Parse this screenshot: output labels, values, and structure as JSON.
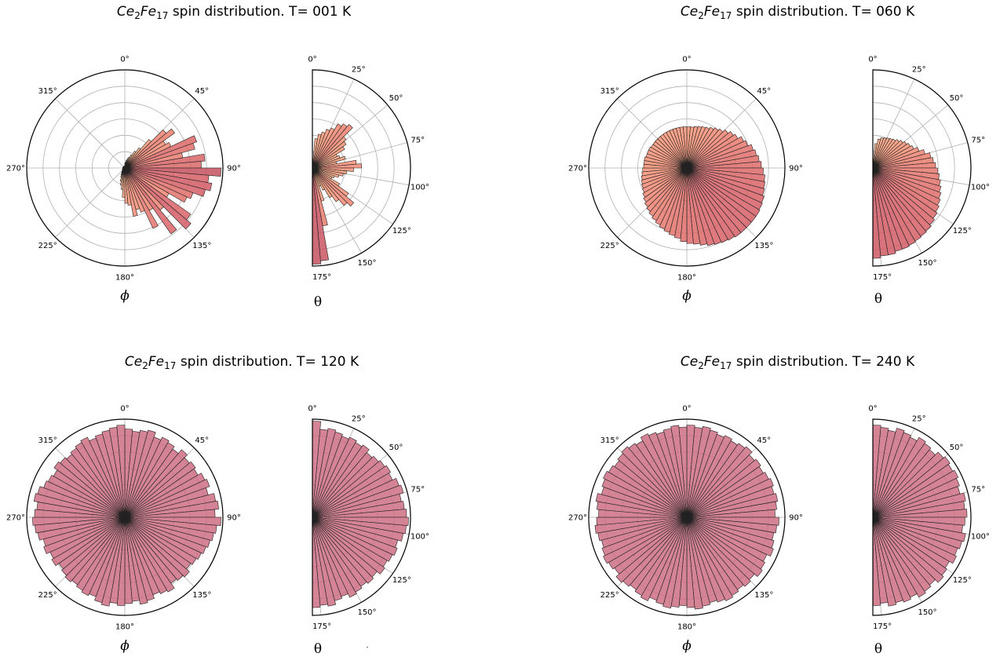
{
  "chart_data": [
    {
      "type": "polar-histogram",
      "title_prefix": "Ce",
      "title_sub1": "2",
      "title_mid": "Fe",
      "title_sub2": "17",
      "title_suffix": " spin distribution. T= 001 K",
      "temperature": "001 K",
      "phi": {
        "axis_label": "ϕ",
        "tick_labels": [
          "0°",
          "45°",
          "90°",
          "135°",
          "180°",
          "225°",
          "270°",
          "315°"
        ],
        "bin_centers_deg": [
          2.5,
          7.5,
          12.5,
          17.5,
          22.5,
          27.5,
          32.5,
          37.5,
          42.5,
          47.5,
          52.5,
          57.5,
          62.5,
          67.5,
          72.5,
          77.5,
          82.5,
          87.5,
          92.5,
          97.5,
          102.5,
          107.5,
          112.5,
          117.5,
          122.5,
          127.5,
          132.5,
          137.5,
          142.5,
          147.5,
          152.5,
          157.5,
          162.5,
          167.5,
          172.5,
          177.5,
          182.5,
          187.5,
          192.5,
          197.5,
          202.5,
          207.5,
          212.5,
          217.5,
          222.5,
          227.5,
          232.5,
          237.5,
          242.5,
          247.5,
          252.5,
          257.5,
          262.5,
          267.5,
          272.5,
          277.5,
          282.5,
          287.5,
          292.5,
          297.5,
          302.5,
          307.5,
          312.5,
          317.5,
          322.5,
          327.5,
          332.5,
          337.5,
          342.5,
          347.5,
          352.5,
          357.5
        ],
        "values": [
          0.05,
          0.06,
          0.08,
          0.1,
          0.12,
          0.15,
          0.2,
          0.25,
          0.38,
          0.55,
          0.62,
          0.48,
          0.52,
          0.78,
          0.74,
          0.6,
          0.82,
          0.78,
          0.98,
          0.86,
          0.9,
          0.85,
          0.74,
          0.7,
          0.52,
          0.82,
          0.88,
          0.56,
          0.82,
          0.5,
          0.68,
          0.48,
          0.44,
          0.5,
          0.38,
          0.36,
          0.3,
          0.22,
          0.18,
          0.14,
          0.1,
          0.08,
          0.06,
          0.05,
          0.04,
          0.03,
          0.03,
          0.03,
          0.03,
          0.02,
          0.02,
          0.02,
          0.02,
          0.02,
          0.02,
          0.02,
          0.02,
          0.02,
          0.02,
          0.02,
          0.02,
          0.02,
          0.02,
          0.02,
          0.02,
          0.02,
          0.02,
          0.02,
          0.02,
          0.02,
          0.02,
          0.02
        ]
      },
      "theta": {
        "axis_label": "θ",
        "tick_labels": [
          "0°",
          "25°",
          "50°",
          "75°",
          "100°",
          "125°",
          "150°",
          "175°"
        ],
        "bin_centers_deg": [
          2.5,
          7.5,
          12.5,
          17.5,
          22.5,
          27.5,
          32.5,
          37.5,
          42.5,
          47.5,
          52.5,
          57.5,
          62.5,
          67.5,
          72.5,
          77.5,
          82.5,
          87.5,
          92.5,
          97.5,
          102.5,
          107.5,
          112.5,
          117.5,
          122.5,
          127.5,
          132.5,
          137.5,
          142.5,
          147.5,
          152.5,
          157.5,
          162.5,
          167.5,
          172.5,
          177.5
        ],
        "values": [
          0.05,
          0.3,
          0.35,
          0.38,
          0.42,
          0.45,
          0.52,
          0.55,
          0.58,
          0.45,
          0.42,
          0.38,
          0.28,
          0.3,
          0.35,
          0.25,
          0.45,
          0.5,
          0.42,
          0.35,
          0.32,
          0.28,
          0.24,
          0.22,
          0.32,
          0.45,
          0.55,
          0.5,
          0.42,
          0.35,
          0.25,
          0.2,
          0.35,
          0.6,
          0.95,
          0.98
        ]
      }
    },
    {
      "type": "polar-histogram",
      "title_prefix": "Ce",
      "title_sub1": "2",
      "title_mid": "Fe",
      "title_sub2": "17",
      "title_suffix": " spin distribution. T= 060 K",
      "temperature": "060 K",
      "phi": {
        "axis_label": "ϕ",
        "tick_labels": [
          "0°",
          "45°",
          "90°",
          "135°",
          "180°",
          "225°",
          "270°",
          "315°"
        ],
        "values": [
          0.42,
          0.42,
          0.43,
          0.44,
          0.45,
          0.46,
          0.48,
          0.5,
          0.52,
          0.55,
          0.58,
          0.6,
          0.64,
          0.66,
          0.7,
          0.72,
          0.74,
          0.76,
          0.78,
          0.8,
          0.81,
          0.82,
          0.84,
          0.85,
          0.86,
          0.86,
          0.86,
          0.86,
          0.86,
          0.85,
          0.84,
          0.83,
          0.82,
          0.8,
          0.78,
          0.77,
          0.75,
          0.72,
          0.7,
          0.68,
          0.66,
          0.64,
          0.62,
          0.6,
          0.58,
          0.56,
          0.54,
          0.52,
          0.5,
          0.49,
          0.48,
          0.47,
          0.46,
          0.45,
          0.44,
          0.44,
          0.44,
          0.43,
          0.43,
          0.43,
          0.42,
          0.42,
          0.42,
          0.42,
          0.42,
          0.42,
          0.42,
          0.42,
          0.42,
          0.42,
          0.42,
          0.42
        ]
      },
      "theta": {
        "axis_label": "θ",
        "tick_labels": [
          "0°",
          "25°",
          "50°",
          "75°",
          "100°",
          "125°",
          "150°",
          "175°"
        ],
        "values": [
          0.02,
          0.25,
          0.3,
          0.32,
          0.33,
          0.34,
          0.35,
          0.36,
          0.38,
          0.4,
          0.42,
          0.44,
          0.46,
          0.5,
          0.55,
          0.6,
          0.62,
          0.64,
          0.66,
          0.68,
          0.7,
          0.72,
          0.74,
          0.76,
          0.78,
          0.8,
          0.82,
          0.84,
          0.85,
          0.86,
          0.87,
          0.88,
          0.88,
          0.9,
          0.9,
          0.92
        ]
      }
    },
    {
      "type": "polar-histogram",
      "title_prefix": "Ce",
      "title_sub1": "2",
      "title_mid": "Fe",
      "title_sub2": "17",
      "title_suffix": " spin distribution. T= 120 K",
      "temperature": "120 K",
      "phi": {
        "axis_label": "ϕ",
        "tick_labels": [
          "0°",
          "45°",
          "90°",
          "135°",
          "180°",
          "225°",
          "270°",
          "315°"
        ],
        "values": [
          0.9,
          0.88,
          0.9,
          0.92,
          0.87,
          0.9,
          0.88,
          0.85,
          0.9,
          0.86,
          0.88,
          0.86,
          0.9,
          0.92,
          0.88,
          0.94,
          0.96,
          0.92,
          0.98,
          0.94,
          0.92,
          0.9,
          0.88,
          0.86,
          0.84,
          0.82,
          0.86,
          0.84,
          0.82,
          0.88,
          0.86,
          0.84,
          0.88,
          0.9,
          0.86,
          0.88,
          0.9,
          0.88,
          0.92,
          0.9,
          0.86,
          0.88,
          0.86,
          0.84,
          0.86,
          0.84,
          0.82,
          0.86,
          0.84,
          0.88,
          0.86,
          0.9,
          0.92,
          0.94,
          0.92,
          0.9,
          0.94,
          0.92,
          0.88,
          0.86,
          0.84,
          0.88,
          0.86,
          0.84,
          0.86,
          0.88,
          0.9,
          0.86,
          0.88,
          0.9,
          0.92,
          0.94
        ]
      },
      "theta": {
        "axis_label": "θ",
        "tick_labels": [
          "0°",
          "25°",
          "50°",
          "75°",
          "100°",
          "125°",
          "150°",
          "175°"
        ],
        "values": [
          0.98,
          0.9,
          0.92,
          0.9,
          0.88,
          0.9,
          0.88,
          0.9,
          0.86,
          0.88,
          0.9,
          0.92,
          0.9,
          0.94,
          0.96,
          0.92,
          0.94,
          0.96,
          0.98,
          0.96,
          0.94,
          0.9,
          0.92,
          0.9,
          0.88,
          0.9,
          0.86,
          0.88,
          0.86,
          0.88,
          0.9,
          0.86,
          0.88,
          0.92,
          0.9,
          0.92
        ]
      }
    },
    {
      "type": "polar-histogram",
      "title_prefix": "Ce",
      "title_sub1": "2",
      "title_mid": "Fe",
      "title_sub2": "17",
      "title_suffix": " spin distribution. T= 240 K",
      "temperature": "240 K",
      "phi": {
        "axis_label": "ϕ",
        "tick_labels": [
          "0°",
          "45°",
          "90°",
          "135°",
          "180°",
          "225°",
          "270°",
          "315°"
        ],
        "values": [
          0.94,
          0.92,
          0.94,
          0.92,
          0.9,
          0.92,
          0.9,
          0.92,
          0.94,
          0.9,
          0.92,
          0.9,
          0.92,
          0.94,
          0.92,
          0.94,
          0.92,
          0.9,
          0.94,
          0.92,
          0.9,
          0.92,
          0.94,
          0.9,
          0.92,
          0.94,
          0.9,
          0.92,
          0.9,
          0.92,
          0.94,
          0.92,
          0.9,
          0.92,
          0.94,
          0.92,
          0.9,
          0.92,
          0.94,
          0.92,
          0.9,
          0.94,
          0.92,
          0.9,
          0.92,
          0.94,
          0.9,
          0.92,
          0.94,
          0.92,
          0.9,
          0.92,
          0.94,
          0.92,
          0.9,
          0.92,
          0.94,
          0.9,
          0.92,
          0.94,
          0.92,
          0.9,
          0.92,
          0.94,
          0.92,
          0.9,
          0.94,
          0.92,
          0.9,
          0.92,
          0.94,
          0.92
        ]
      },
      "theta": {
        "axis_label": "θ",
        "tick_labels": [
          "0°",
          "25°",
          "50°",
          "75°",
          "100°",
          "125°",
          "150°",
          "175°"
        ],
        "values": [
          0.94,
          0.92,
          0.9,
          0.94,
          0.92,
          0.9,
          0.94,
          0.92,
          0.9,
          0.94,
          0.96,
          0.94,
          0.96,
          0.94,
          0.92,
          0.96,
          0.94,
          0.96,
          0.94,
          0.92,
          0.96,
          0.94,
          0.92,
          0.94,
          0.9,
          0.92,
          0.94,
          0.9,
          0.92,
          0.94,
          0.9,
          0.92,
          0.9,
          0.92,
          0.88,
          0.9
        ]
      }
    }
  ],
  "stray_mark": "·"
}
